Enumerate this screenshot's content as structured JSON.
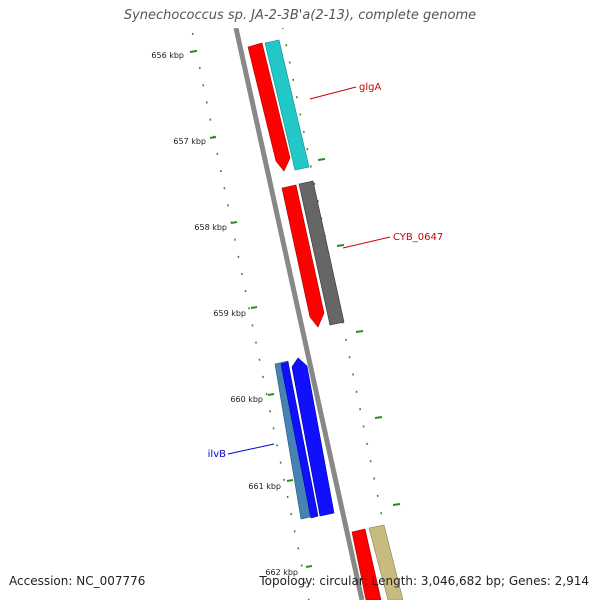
{
  "title": "Synechococcus sp. JA-2-3B'a(2-13), complete genome",
  "accession": "Accession: NC_007776",
  "summary": "Topology: circular; Length: 3,046,682 bp; Genes: 2,914",
  "scale_ticks": [
    "656 kbp",
    "657 kbp",
    "658 kbp",
    "659 kbp",
    "660 kbp",
    "661 kbp",
    "662 kbp"
  ],
  "genes": [
    {
      "label": "glgA",
      "color": "#cc0000"
    },
    {
      "label": "CYB_0647",
      "color": "#cc0000"
    },
    {
      "label": "ilvB",
      "color": "#0000cc"
    }
  ],
  "colors": {
    "backbone": "#888888",
    "tick": "#2e8b22",
    "red": "#ff0000",
    "cyan": "#22c8c8",
    "gray": "#666666",
    "blue": "#1010ff",
    "steel": "#4682b4",
    "khaki": "#c8bb80"
  }
}
